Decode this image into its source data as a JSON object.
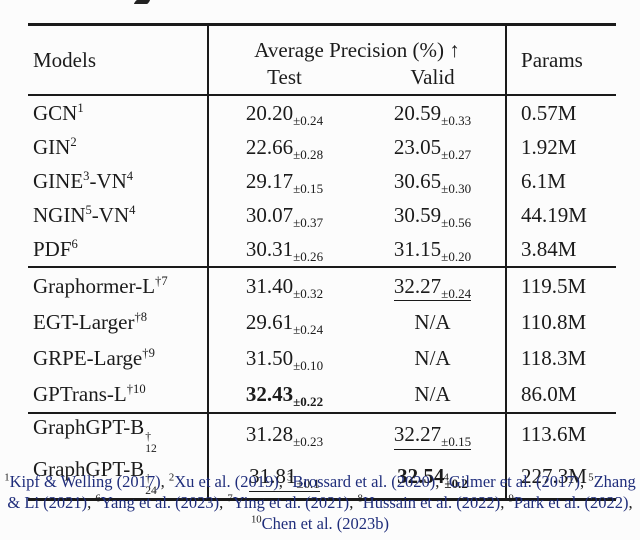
{
  "table": {
    "header": {
      "models": "Models",
      "ap": "Average Precision (%) ↑",
      "test": "Test",
      "valid": "Valid",
      "params": "Params"
    },
    "groups": [
      {
        "rows": [
          {
            "name": [
              {
                "t": "GCN"
              },
              {
                "sup": "1"
              }
            ],
            "test": {
              "v": "20.20",
              "e": "±0.24"
            },
            "valid": {
              "v": "20.59",
              "e": "±0.33"
            },
            "params": "0.57M"
          },
          {
            "name": [
              {
                "t": "GIN"
              },
              {
                "sup": "2"
              }
            ],
            "test": {
              "v": "22.66",
              "e": "±0.28"
            },
            "valid": {
              "v": "23.05",
              "e": "±0.27"
            },
            "params": "1.92M"
          },
          {
            "name": [
              {
                "t": "GINE"
              },
              {
                "sup": "3"
              },
              {
                "t": "-VN"
              },
              {
                "sup": "4"
              }
            ],
            "test": {
              "v": "29.17",
              "e": "±0.15"
            },
            "valid": {
              "v": "30.65",
              "e": "±0.30"
            },
            "params": "6.1M"
          },
          {
            "name": [
              {
                "t": "NGIN"
              },
              {
                "sup": "5"
              },
              {
                "t": "-VN"
              },
              {
                "sup": "4"
              }
            ],
            "test": {
              "v": "30.07",
              "e": "±0.37"
            },
            "valid": {
              "v": "30.59",
              "e": "±0.56"
            },
            "params": "44.19M"
          },
          {
            "name": [
              {
                "t": "PDF"
              },
              {
                "sup": "6"
              }
            ],
            "test": {
              "v": "30.31",
              "e": "±0.26"
            },
            "valid": {
              "v": "31.15",
              "e": "±0.20"
            },
            "params": "3.84M"
          }
        ]
      },
      {
        "rows": [
          {
            "name": [
              {
                "t": "Graphormer-L"
              },
              {
                "sup": "†7"
              }
            ],
            "test": {
              "v": "31.40",
              "e": "±0.32"
            },
            "valid": {
              "v": "32.27",
              "e": "±0.24",
              "style": "underline"
            },
            "params": "119.5M"
          },
          {
            "name": [
              {
                "t": "EGT-Larger"
              },
              {
                "sup": "†8"
              }
            ],
            "test": {
              "v": "29.61",
              "e": "±0.24"
            },
            "valid": {
              "na": "N/A"
            },
            "params": "110.8M"
          },
          {
            "name": [
              {
                "t": "GRPE-Large"
              },
              {
                "sup": "†9"
              }
            ],
            "test": {
              "v": "31.50",
              "e": "±0.10"
            },
            "valid": {
              "na": "N/A"
            },
            "params": "118.3M"
          },
          {
            "name": [
              {
                "t": "GPTrans-L"
              },
              {
                "sup": "†10"
              }
            ],
            "test": {
              "v": "32.43",
              "e": "±0.22",
              "style": "bold"
            },
            "valid": {
              "na": "N/A"
            },
            "params": "86.0M"
          }
        ]
      },
      {
        "rows": [
          {
            "name": [
              {
                "t": "GraphGPT-B"
              },
              {
                "stack": [
                  "†",
                  "12"
                ]
              }
            ],
            "test": {
              "v": "31.28",
              "e": "±0.23"
            },
            "valid": {
              "v": "32.27",
              "e": "±0.15",
              "style": "underline"
            },
            "params": "113.6M"
          },
          {
            "name": [
              {
                "t": "GraphGPT-B"
              },
              {
                "stack": [
                  "†",
                  "24"
                ]
              }
            ],
            "test": {
              "v": "31.81",
              "e": "±0.1",
              "style": "underline"
            },
            "valid": {
              "v": "32.54",
              "e": "±0.2",
              "style": "bold"
            },
            "params": "227.3M"
          }
        ]
      }
    ]
  },
  "footnotes": {
    "separator": ", ",
    "items": [
      {
        "num": "1",
        "text": "Kipf & Welling (2017)"
      },
      {
        "num": "2",
        "text": "Xu et al. (2019)"
      },
      {
        "num": "3",
        "text": "Brossard et al. (2020)"
      },
      {
        "num": "4",
        "text": "Gilmer et al. (2017)"
      },
      {
        "num": "5",
        "text": "Zhang & Li (2021)"
      },
      {
        "num": "6",
        "text": "Yang et al. (2023)"
      },
      {
        "num": "7",
        "text": "Ying et al. (2021)"
      },
      {
        "num": "8",
        "text": "Hussain et al. (2022)"
      },
      {
        "num": "9",
        "text": "Park et al. (2022)"
      },
      {
        "num": "10",
        "text": "Chen et al. (2023b)"
      }
    ]
  },
  "colors": {
    "text": "#1b1b1b",
    "rule": "#1a1a1a",
    "citation": "#1f2d7b",
    "background": "#fcfcfc"
  }
}
